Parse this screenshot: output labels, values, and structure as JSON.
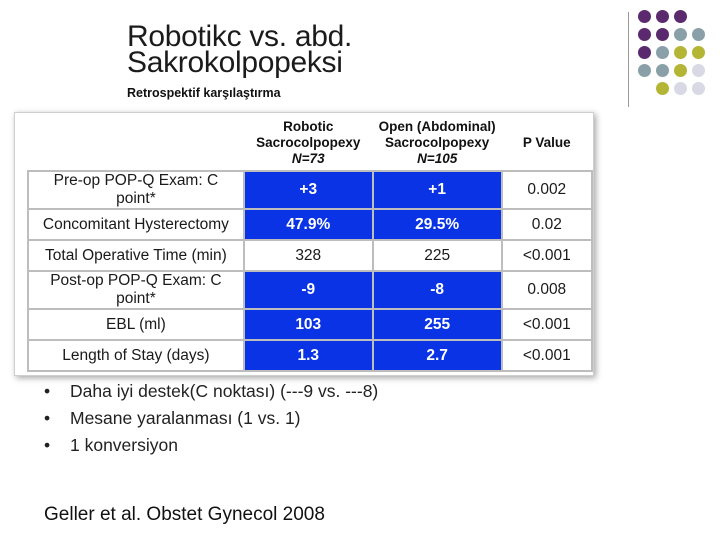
{
  "slide": {
    "title_line1": "Robotikc vs. abd.",
    "title_line2": "Sakrokolpopeksi",
    "subtitle": "Retrospektif karşılaştırma"
  },
  "table": {
    "headers": [
      {
        "line1": "",
        "line2": "",
        "line3": ""
      },
      {
        "line1": "Robotic",
        "line2": "Sacrocolpopexy",
        "line3": "N=73"
      },
      {
        "line1": "Open (Abdominal)",
        "line2": "Sacrocolpopexy",
        "line3": "N=105"
      },
      {
        "line1": "P Value",
        "line2": "",
        "line3": ""
      }
    ],
    "rows": [
      {
        "label": "Pre-op POP-Q Exam: C point*",
        "robotic": "+3",
        "open": "+1",
        "p": "0.002",
        "highlight": true
      },
      {
        "label": "Concomitant Hysterectomy",
        "robotic": "47.9%",
        "open": "29.5%",
        "p": "0.02",
        "highlight": true
      },
      {
        "label": "Total Operative Time (min)",
        "robotic": "328",
        "open": "225",
        "p": "<0.001",
        "highlight": false
      },
      {
        "label": "Post-op POP-Q Exam: C point*",
        "robotic": "-9",
        "open": "-8",
        "p": "0.008",
        "highlight": true
      },
      {
        "label": "EBL (ml)",
        "robotic": "103",
        "open": "255",
        "p": "<0.001",
        "highlight": true
      },
      {
        "label": "Length of Stay (days)",
        "robotic": "1.3",
        "open": "2.7",
        "p": "<0.001",
        "highlight": true
      }
    ]
  },
  "bullets": [
    "Daha iyi destek(C noktası) (---9 vs. ---8)",
    "Mesane yaralanması (1 vs. 1)",
    "1 konversiyon"
  ],
  "bullet_marker": "•",
  "citation": "Geller et al. Obstet Gynecol 2008",
  "colors": {
    "highlight_blue": "#0a33e6",
    "dot_purple": "#5b2a6e",
    "dot_gray": "#8aa0a8",
    "dot_olive": "#b5b535",
    "dot_light": "#d9d9e6"
  },
  "decor": {
    "dot_pattern": [
      [
        "purple",
        "purple",
        "purple",
        ""
      ],
      [
        "purple",
        "purple",
        "gray",
        "gray"
      ],
      [
        "purple",
        "gray",
        "olive",
        "olive"
      ],
      [
        "gray",
        "gray",
        "olive",
        "light"
      ],
      [
        "",
        "olive",
        "light",
        "light"
      ]
    ]
  }
}
